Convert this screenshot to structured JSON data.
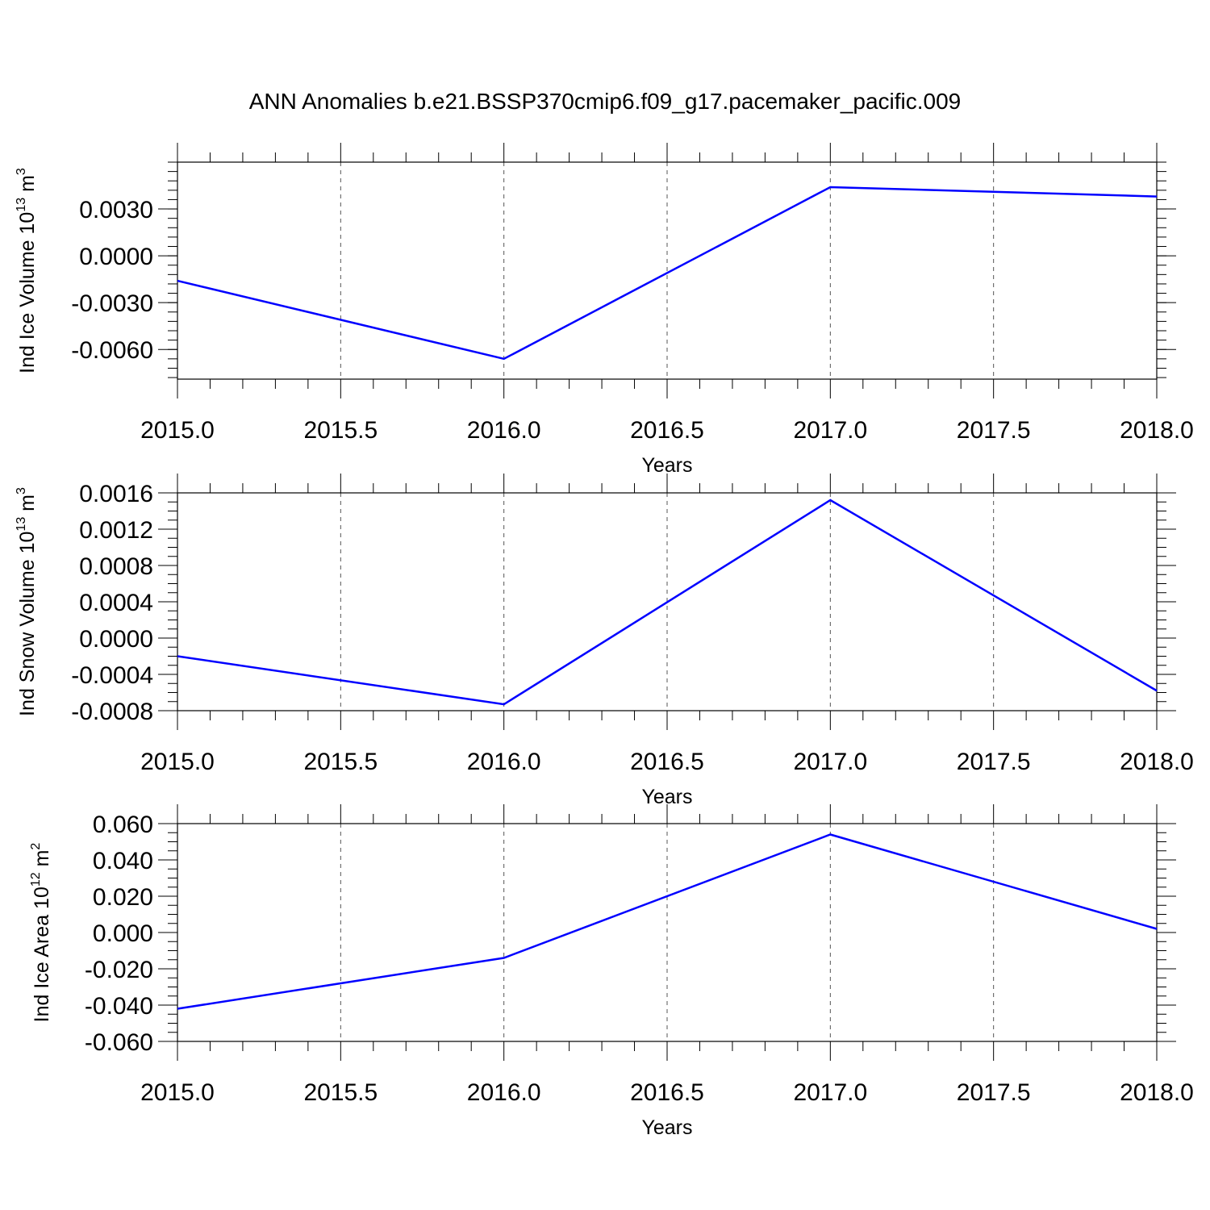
{
  "title": "ANN Anomalies b.e21.BSSP370cmip6.f09_g17.pacemaker_pacific.009",
  "chart_data": [
    {
      "type": "line",
      "ylabel": {
        "text": "Ind Ice Volume 10",
        "sup": "13",
        "unit": " m",
        "unit_sup": "3"
      },
      "xlabel": "Years",
      "x": [
        2015,
        2016,
        2017,
        2018
      ],
      "series": [
        {
          "values": [
            -0.0016,
            -0.0066,
            0.0044,
            0.0038
          ]
        }
      ],
      "xlim": [
        2015,
        2018
      ],
      "ylim": [
        -0.0079,
        0.006
      ],
      "x_ticks": [
        "2015.0",
        "2015.5",
        "2016.0",
        "2016.5",
        "2017.0",
        "2017.5",
        "2018.0"
      ],
      "y_ticks": [
        "0.0030",
        "0.0000",
        "-0.0030",
        "-0.0060"
      ],
      "y_tick_values": [
        0.003,
        0,
        -0.003,
        -0.006
      ],
      "y_minor_step": 0.0006,
      "color": "#0000ff",
      "grid": "vertical-dashed"
    },
    {
      "type": "line",
      "ylabel": {
        "text": "Ind Snow Volume 10",
        "sup": "13",
        "unit": " m",
        "unit_sup": "3"
      },
      "xlabel": "Years",
      "x": [
        2015,
        2016,
        2017,
        2018
      ],
      "series": [
        {
          "values": [
            -0.0002,
            -0.00073,
            0.00152,
            -0.00058
          ]
        }
      ],
      "xlim": [
        2015,
        2018
      ],
      "ylim": [
        -0.0008,
        0.0016
      ],
      "x_ticks": [
        "2015.0",
        "2015.5",
        "2016.0",
        "2016.5",
        "2017.0",
        "2017.5",
        "2018.0"
      ],
      "y_ticks": [
        "0.0016",
        "0.0012",
        "0.0008",
        "0.0004",
        "0.0000",
        "-0.0004",
        "-0.0008"
      ],
      "y_tick_values": [
        0.0016,
        0.0012,
        0.0008,
        0.0004,
        0,
        -0.0004,
        -0.0008
      ],
      "y_minor_step": 0.0001,
      "color": "#0000ff",
      "grid": "vertical-dashed"
    },
    {
      "type": "line",
      "ylabel": {
        "text": "Ind Ice Area 10",
        "sup": "12",
        "unit": " m",
        "unit_sup": "2"
      },
      "xlabel": "Years",
      "x": [
        2015,
        2016,
        2017,
        2018
      ],
      "series": [
        {
          "values": [
            -0.042,
            -0.014,
            0.054,
            0.002
          ]
        }
      ],
      "xlim": [
        2015,
        2018
      ],
      "ylim": [
        -0.06,
        0.06
      ],
      "x_ticks": [
        "2015.0",
        "2015.5",
        "2016.0",
        "2016.5",
        "2017.0",
        "2017.5",
        "2018.0"
      ],
      "y_ticks": [
        "0.060",
        "0.040",
        "0.020",
        "0.000",
        "-0.020",
        "-0.040",
        "-0.060"
      ],
      "y_tick_values": [
        0.06,
        0.04,
        0.02,
        0,
        -0.02,
        -0.04,
        -0.06
      ],
      "y_minor_step": 0.005,
      "color": "#0000ff",
      "grid": "vertical-dashed"
    }
  ]
}
